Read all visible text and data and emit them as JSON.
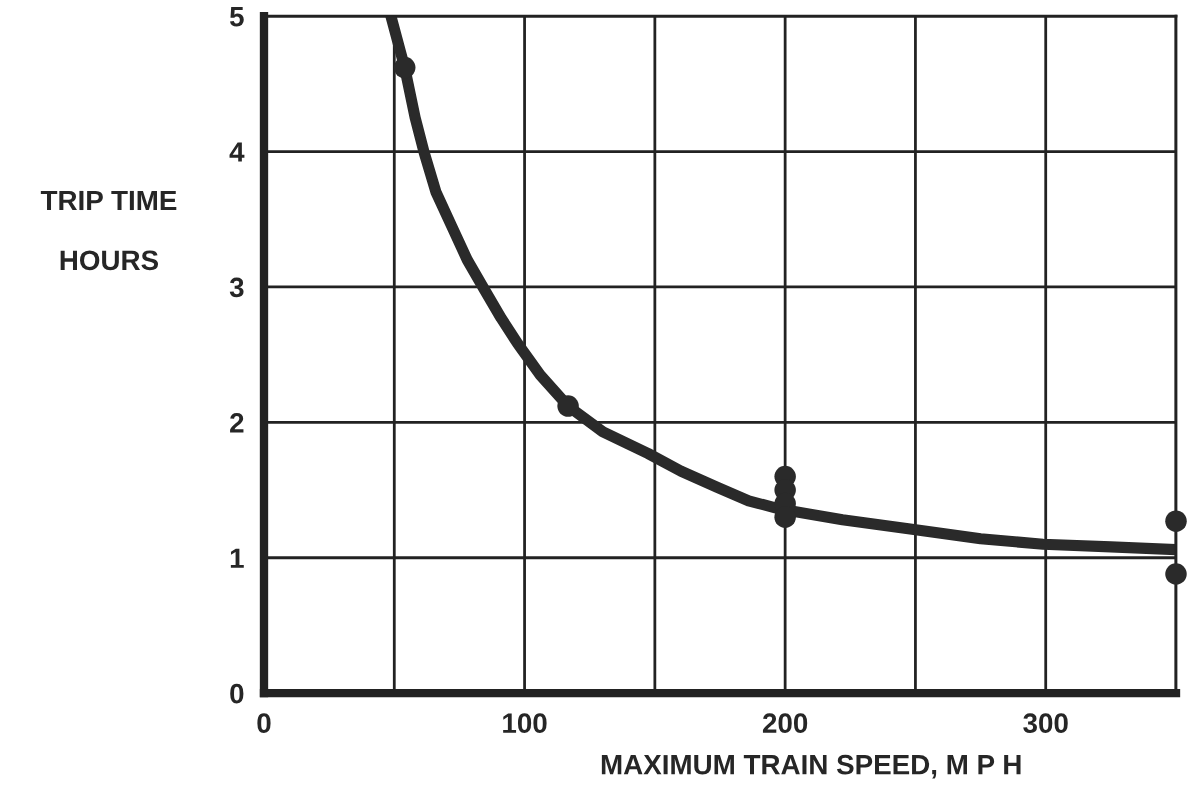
{
  "chart_data": {
    "type": "scatter",
    "xlabel": "MAXIMUM TRAIN SPEED, M P H",
    "ylabel": "TRIP TIME\n\nHOURS",
    "xlim": [
      0,
      350
    ],
    "ylim": [
      0,
      5
    ],
    "xticks": [
      0,
      {
        "value": 50,
        "label": null
      },
      100,
      {
        "value": 150,
        "label": null
      },
      200,
      {
        "value": 250,
        "label": null
      },
      300,
      {
        "value": 350,
        "label": null
      }
    ],
    "yticks": [
      0,
      1,
      2,
      3,
      4,
      5
    ],
    "grid": true,
    "series": [
      {
        "type": "line",
        "color": "#2a2a2a",
        "x": [
          48.7,
          54,
          58,
          61.5,
          66,
          72,
          78,
          84.6,
          91,
          97.4,
          106,
          116.7,
          130,
          147.4,
          160,
          174,
          186,
          198,
          222,
          248.7,
          275,
          299,
          325,
          350
        ],
        "values": [
          5.0,
          4.62,
          4.25,
          3.99,
          3.7,
          3.45,
          3.2,
          2.98,
          2.77,
          2.58,
          2.35,
          2.12,
          1.93,
          1.77,
          1.64,
          1.52,
          1.42,
          1.36,
          1.28,
          1.21,
          1.14,
          1.1,
          1.08,
          1.06
        ]
      },
      {
        "color": "#2a2a2a",
        "x": [
          54,
          116.7,
          200,
          200,
          200,
          200,
          350,
          350
        ],
        "values": [
          4.62,
          2.12,
          1.6,
          1.5,
          1.4,
          1.3,
          1.27,
          0.88
        ]
      }
    ]
  }
}
